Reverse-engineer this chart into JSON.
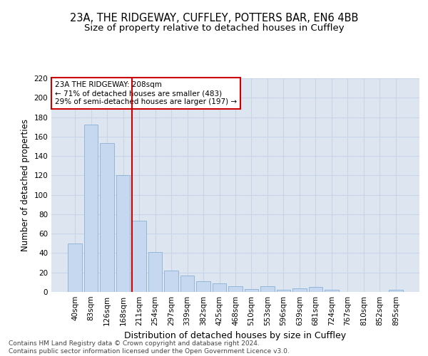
{
  "title1": "23A, THE RIDGEWAY, CUFFLEY, POTTERS BAR, EN6 4BB",
  "title2": "Size of property relative to detached houses in Cuffley",
  "xlabel": "Distribution of detached houses by size in Cuffley",
  "ylabel": "Number of detached properties",
  "categories": [
    "40sqm",
    "83sqm",
    "126sqm",
    "168sqm",
    "211sqm",
    "254sqm",
    "297sqm",
    "339sqm",
    "382sqm",
    "425sqm",
    "468sqm",
    "510sqm",
    "553sqm",
    "596sqm",
    "639sqm",
    "681sqm",
    "724sqm",
    "767sqm",
    "810sqm",
    "852sqm",
    "895sqm"
  ],
  "values": [
    50,
    172,
    153,
    120,
    73,
    41,
    22,
    17,
    11,
    9,
    6,
    3,
    6,
    2,
    4,
    5,
    2,
    0,
    0,
    0,
    2
  ],
  "bar_color": "#c5d8ef",
  "bar_edge_color": "#8ab0d4",
  "grid_color": "#c8d4e8",
  "background_color": "#dde5f0",
  "vline_color": "#cc0000",
  "annotation_text": "23A THE RIDGEWAY: 208sqm\n← 71% of detached houses are smaller (483)\n29% of semi-detached houses are larger (197) →",
  "annotation_box_color": "#ffffff",
  "annotation_box_edge": "#cc0000",
  "ylim": [
    0,
    220
  ],
  "yticks": [
    0,
    20,
    40,
    60,
    80,
    100,
    120,
    140,
    160,
    180,
    200,
    220
  ],
  "footer": "Contains HM Land Registry data © Crown copyright and database right 2024.\nContains public sector information licensed under the Open Government Licence v3.0.",
  "title1_fontsize": 10.5,
  "title2_fontsize": 9.5,
  "xlabel_fontsize": 9,
  "ylabel_fontsize": 8.5,
  "tick_fontsize": 7.5,
  "annotation_fontsize": 7.5,
  "footer_fontsize": 6.5
}
